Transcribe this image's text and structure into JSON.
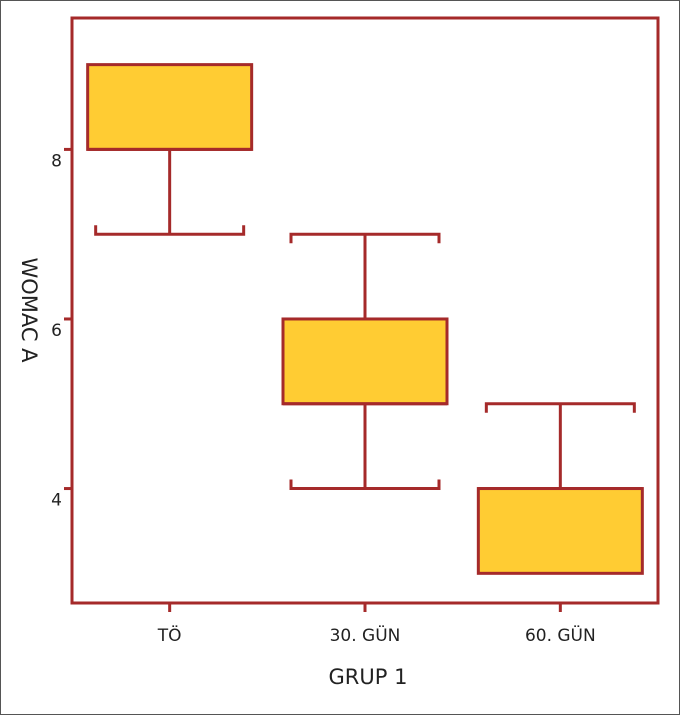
{
  "chart_data": {
    "type": "box",
    "xlabel": "GRUP 1",
    "ylabel": "WOMAC A",
    "categories": [
      "TÖ",
      "30. GÜN",
      "60. GÜN"
    ],
    "boxes": [
      {
        "category": "TÖ",
        "whisker_low": 7,
        "q1": 8,
        "median": 8,
        "q3": 9,
        "whisker_high": 9
      },
      {
        "category": "30. GÜN",
        "whisker_low": 4,
        "q1": 5,
        "median": 5,
        "q3": 6,
        "whisker_high": 7
      },
      {
        "category": "60. GÜN",
        "whisker_low": 3,
        "q1": 3,
        "median": 4,
        "q3": 4,
        "whisker_high": 5
      }
    ],
    "yticks": [
      4,
      6,
      8
    ],
    "ylim": [
      2.65,
      9.55
    ],
    "grid": false,
    "colors": {
      "box_fill": "#FFCC33",
      "line": "#A52A2A",
      "axis": "#A52A2A"
    }
  }
}
